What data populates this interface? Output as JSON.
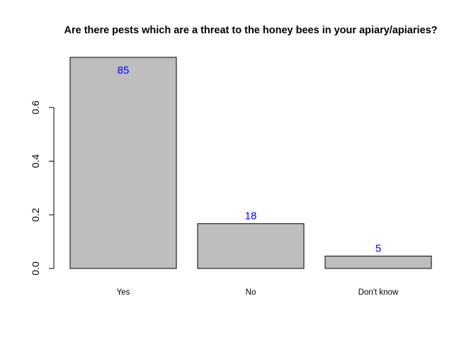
{
  "chart_data": {
    "type": "bar",
    "title": "Are there pests which are a threat to the honey bees in your apiary/apiaries?",
    "xlabel": "",
    "ylabel": "",
    "categories": [
      "Yes",
      "No",
      "Don't know"
    ],
    "values": [
      0.787,
      0.167,
      0.046
    ],
    "counts": [
      "85",
      "18",
      "5"
    ],
    "yticks": [
      "0.0",
      "0.2",
      "0.4",
      "0.6"
    ],
    "ylim": [
      0,
      0.8
    ],
    "grid": false,
    "colors": {
      "bar_fill": "#bebebe",
      "bar_stroke": "#000000",
      "label": "#0000ff"
    }
  }
}
